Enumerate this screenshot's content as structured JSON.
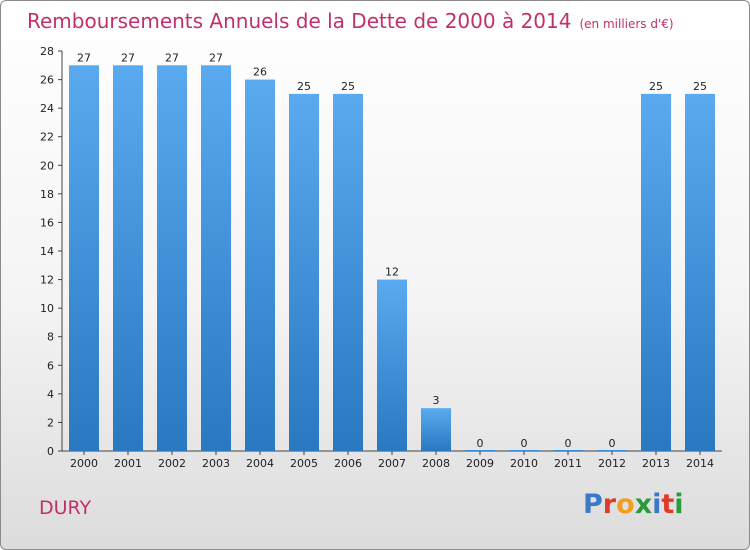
{
  "chart_data": {
    "type": "bar",
    "title": "Remboursements Annuels de la Dette de 2000 à 2014",
    "subtitle": "(en milliers d'€)",
    "categories": [
      "2000",
      "2001",
      "2002",
      "2003",
      "2004",
      "2005",
      "2006",
      "2007",
      "2008",
      "2009",
      "2010",
      "2011",
      "2012",
      "2013",
      "2014"
    ],
    "values": [
      27,
      27,
      27,
      27,
      26,
      25,
      25,
      12,
      3,
      0,
      0,
      0,
      0,
      25,
      25
    ],
    "ylim": [
      0,
      28
    ],
    "yticks": [
      0,
      2,
      4,
      6,
      8,
      10,
      12,
      14,
      16,
      18,
      20,
      22,
      24,
      26,
      28
    ],
    "grid": false,
    "bar_color": "#3a8fd8",
    "bar_color_light": "#5aaaf0",
    "bar_color_dark": "#2a78c0"
  },
  "footer": {
    "town": "DURY",
    "logo_letters": [
      "P",
      "r",
      "o",
      "x",
      "i",
      "t",
      "i"
    ],
    "logo_colors": [
      "#3a78c8",
      "#e23a2a",
      "#f0a020",
      "#2a9a3a",
      "#3a78c8",
      "#e23a2a",
      "#2a9a3a"
    ]
  }
}
